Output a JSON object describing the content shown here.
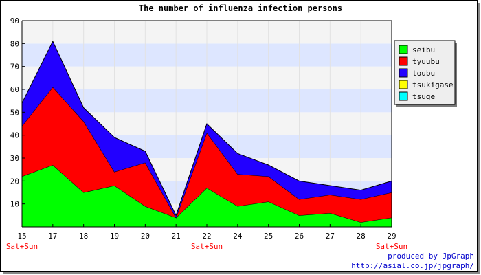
{
  "chart_data": {
    "type": "area",
    "stacked": true,
    "title": "The number of influenza infection persons",
    "categories": [
      "15",
      "17",
      "18",
      "19",
      "20",
      "21",
      "22",
      "24",
      "25",
      "26",
      "27",
      "28",
      "29"
    ],
    "weekend_labels": [
      {
        "category": "15",
        "text": "Sat+Sun"
      },
      {
        "category": "22",
        "text": "Sat+Sun"
      },
      {
        "category": "29",
        "text": "Sat+Sun"
      }
    ],
    "ylim": [
      0,
      90
    ],
    "yticks": [
      10,
      20,
      30,
      40,
      50,
      60,
      70,
      80,
      90
    ],
    "series": [
      {
        "name": "seibu",
        "color": "#00ff00",
        "values": [
          22,
          27,
          15,
          18,
          9,
          4,
          17,
          9,
          11,
          5,
          6,
          2,
          4
        ]
      },
      {
        "name": "tyuubu",
        "color": "#ff0000",
        "values": [
          22,
          34,
          31,
          6,
          19,
          0,
          24,
          14,
          11,
          7,
          8,
          10,
          11
        ]
      },
      {
        "name": "toubu",
        "color": "#2200ff",
        "values": [
          10,
          20,
          6,
          15,
          5,
          1,
          4,
          9,
          5,
          8,
          4,
          4,
          5
        ]
      },
      {
        "name": "tsukigase",
        "color": "#ffff00",
        "values": [
          0,
          0,
          0,
          0,
          0,
          0,
          0,
          0,
          0,
          0,
          0,
          0,
          0
        ]
      },
      {
        "name": "tsuge",
        "color": "#00ffff",
        "values": [
          0,
          0,
          0,
          0,
          0,
          0,
          0,
          0,
          0,
          0,
          0,
          0,
          0
        ]
      }
    ],
    "grid": true,
    "legend_position": "right"
  },
  "footer": {
    "line1": "produced by JpGraph",
    "line2": "http://asial.co.jp/jpgraph/"
  }
}
